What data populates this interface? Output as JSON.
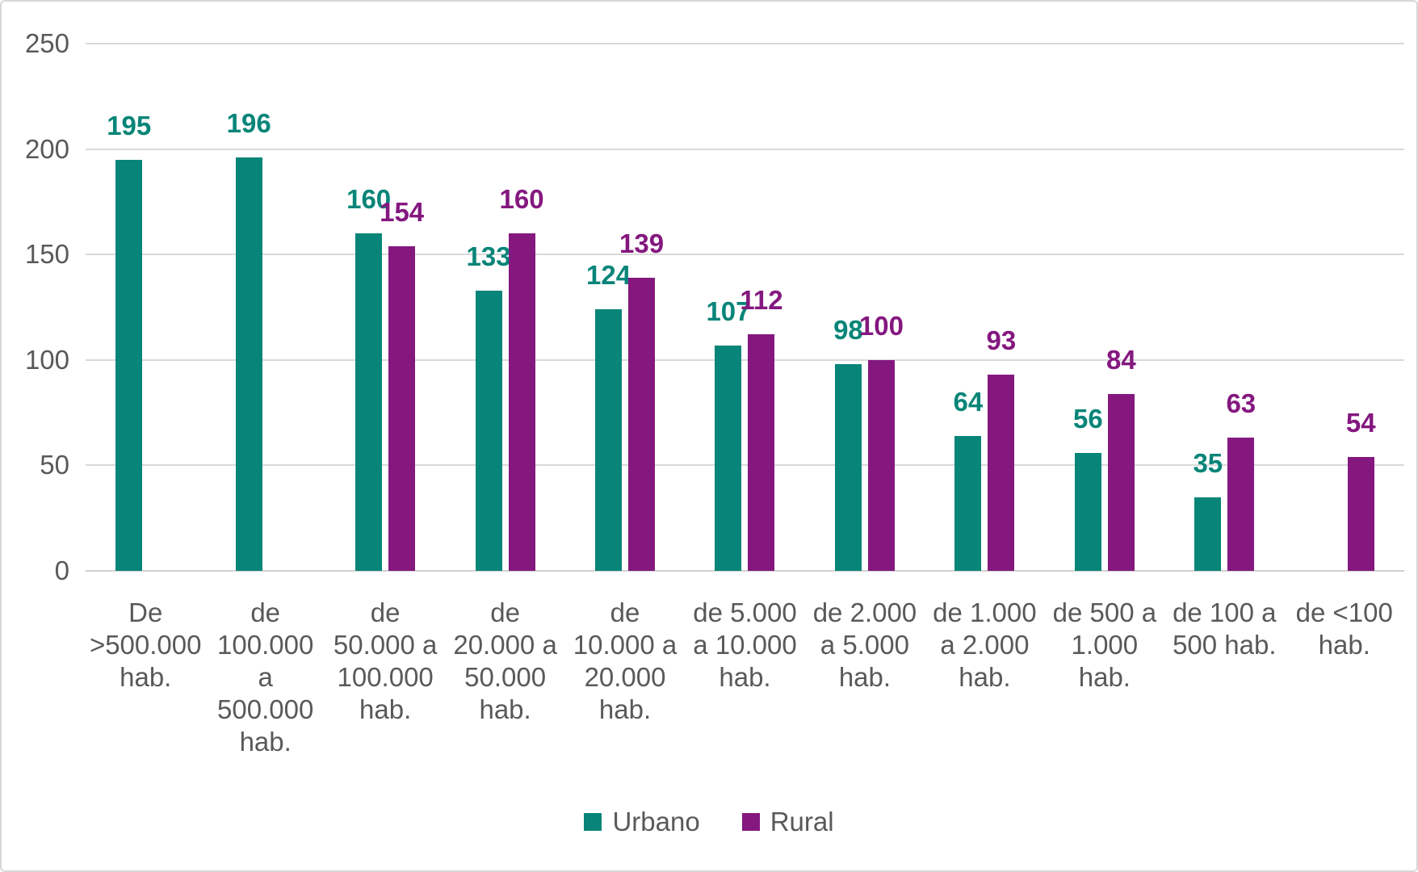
{
  "chart_data": {
    "type": "bar",
    "title": "",
    "xlabel": "",
    "ylabel": "",
    "ylim": [
      0,
      250
    ],
    "yticks": [
      0,
      50,
      100,
      150,
      200,
      250
    ],
    "grid": true,
    "legend_position": "bottom",
    "categories": [
      "De >500.000 hab.",
      "de 100.000 a 500.000 hab.",
      "de 50.000 a 100.000 hab.",
      "de 20.000 a 50.000 hab.",
      "de 10.000 a 20.000 hab.",
      "de 5.000 a 10.000 hab.",
      "de 2.000 a 5.000 hab.",
      "de 1.000 a 2.000 hab.",
      "de 500 a 1.000 hab.",
      "de 100 a 500 hab.",
      "de <100 hab."
    ],
    "category_lines": [
      [
        "De",
        ">500.000",
        "hab."
      ],
      [
        "de",
        "100.000",
        "a",
        "500.000",
        "hab."
      ],
      [
        "de",
        "50.000 a",
        "100.000",
        "hab."
      ],
      [
        "de",
        "20.000 a",
        "50.000",
        "hab."
      ],
      [
        "de",
        "10.000 a",
        "20.000",
        "hab."
      ],
      [
        "de 5.000",
        "a 10.000",
        "hab."
      ],
      [
        "de 2.000",
        "a 5.000",
        "hab."
      ],
      [
        "de 1.000",
        "a 2.000",
        "hab."
      ],
      [
        "de 500 a",
        "1.000",
        "hab."
      ],
      [
        "de 100 a",
        "500 hab."
      ],
      [
        "de <100",
        "hab."
      ]
    ],
    "series": [
      {
        "name": "Urbano",
        "color": "#078578",
        "values": [
          195,
          196,
          160,
          133,
          124,
          107,
          98,
          64,
          56,
          35,
          null
        ]
      },
      {
        "name": "Rural",
        "color": "#84187F",
        "values": [
          null,
          null,
          154,
          160,
          139,
          112,
          100,
          93,
          84,
          63,
          54
        ]
      }
    ]
  },
  "colors": {
    "grid": "#d9d9d9",
    "axis_text": "#595959",
    "background": "#ffffff",
    "border": "#d6d6d6"
  }
}
